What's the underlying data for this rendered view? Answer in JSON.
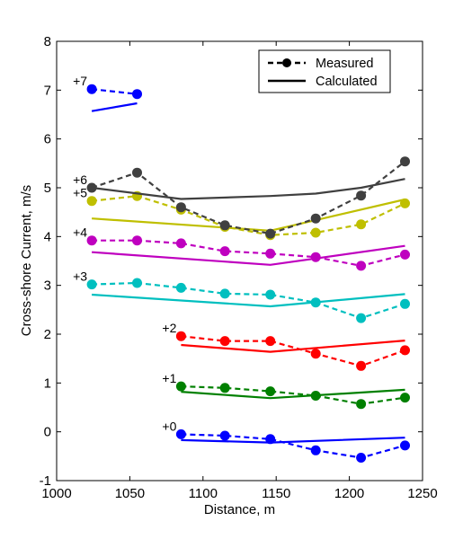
{
  "chart_data": {
    "type": "line",
    "xlabel": "Distance, m",
    "ylabel": "Cross-shore Current, m/s",
    "xlim": [
      1000,
      1250
    ],
    "ylim": [
      -1,
      8
    ],
    "xticks": [
      1000,
      1050,
      1100,
      1150,
      1200,
      1250
    ],
    "yticks": [
      -1,
      0,
      1,
      2,
      3,
      4,
      5,
      6,
      7,
      8
    ],
    "grid": false,
    "legend": {
      "placement": "top-right",
      "entries": [
        {
          "label": "Measured",
          "style": "dashed-marker"
        },
        {
          "label": "Calculated",
          "style": "solid"
        }
      ]
    },
    "series": [
      {
        "offset_label": "+0",
        "color": "#0000ff",
        "measured": {
          "x": [
            1085,
            1115,
            1146,
            1177,
            1208,
            1238
          ],
          "y": [
            -0.05,
            -0.08,
            -0.15,
            -0.38,
            -0.53,
            -0.28
          ]
        },
        "calculated": {
          "x": [
            1085,
            1146,
            1238
          ],
          "y": [
            -0.17,
            -0.22,
            -0.12
          ]
        }
      },
      {
        "offset_label": "+1",
        "color": "#008000",
        "measured": {
          "x": [
            1085,
            1115,
            1146,
            1177,
            1208,
            1238
          ],
          "y": [
            0.93,
            0.9,
            0.83,
            0.74,
            0.57,
            0.7
          ]
        },
        "calculated": {
          "x": [
            1085,
            1146,
            1238
          ],
          "y": [
            0.82,
            0.69,
            0.86
          ]
        }
      },
      {
        "offset_label": "+2",
        "color": "#ff0000",
        "measured": {
          "x": [
            1085,
            1115,
            1146,
            1177,
            1208,
            1238
          ],
          "y": [
            1.96,
            1.86,
            1.86,
            1.6,
            1.35,
            1.67
          ]
        },
        "calculated": {
          "x": [
            1085,
            1146,
            1238
          ],
          "y": [
            1.78,
            1.64,
            1.87
          ]
        }
      },
      {
        "offset_label": "+3",
        "color": "#00bfbf",
        "measured": {
          "x": [
            1024,
            1055,
            1085,
            1115,
            1146,
            1177,
            1208,
            1238
          ],
          "y": [
            3.02,
            3.05,
            2.95,
            2.83,
            2.81,
            2.65,
            2.33,
            2.62
          ]
        },
        "calculated": {
          "x": [
            1024,
            1146,
            1238
          ],
          "y": [
            2.81,
            2.57,
            2.82
          ]
        }
      },
      {
        "offset_label": "+4",
        "color": "#bf00bf",
        "measured": {
          "x": [
            1024,
            1055,
            1085,
            1115,
            1146,
            1177,
            1208,
            1238
          ],
          "y": [
            3.92,
            3.92,
            3.86,
            3.7,
            3.65,
            3.58,
            3.4,
            3.63
          ]
        },
        "calculated": {
          "x": [
            1024,
            1146,
            1238
          ],
          "y": [
            3.68,
            3.42,
            3.81
          ]
        }
      },
      {
        "offset_label": "+5",
        "color": "#bfbf00",
        "measured": {
          "x": [
            1024,
            1055,
            1085,
            1115,
            1146,
            1177,
            1208,
            1238
          ],
          "y": [
            4.73,
            4.83,
            4.55,
            4.2,
            4.03,
            4.08,
            4.25,
            4.68
          ]
        },
        "calculated": {
          "x": [
            1024,
            1146,
            1238
          ],
          "y": [
            4.37,
            4.12,
            4.76
          ]
        }
      },
      {
        "offset_label": "+6",
        "color": "#404040",
        "measured": {
          "x": [
            1024,
            1055,
            1085,
            1115,
            1146,
            1177,
            1208,
            1238
          ],
          "y": [
            5.0,
            5.31,
            4.6,
            4.23,
            4.06,
            4.37,
            4.84,
            5.54
          ]
        },
        "calculated": {
          "x": [
            1024,
            1085,
            1146,
            1177,
            1208,
            1238
          ],
          "y": [
            5.0,
            4.77,
            4.83,
            4.88,
            5.0,
            5.18
          ]
        }
      },
      {
        "offset_label": "+7",
        "color": "#0000ff",
        "measured": {
          "x": [
            1024,
            1055
          ],
          "y": [
            7.02,
            6.92
          ]
        },
        "calculated": {
          "x": [
            1024,
            1055
          ],
          "y": [
            6.57,
            6.73
          ]
        }
      }
    ]
  }
}
